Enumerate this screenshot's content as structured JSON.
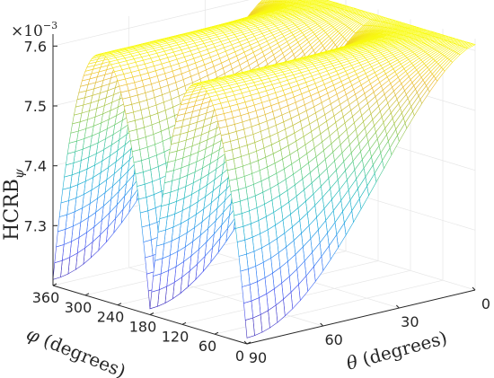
{
  "chart_data": {
    "type": "surface",
    "title": "",
    "zlabel_main": "HCRB",
    "zlabel_sub": "ψ",
    "multiplier_base": "×10",
    "multiplier_exp": "−3",
    "xlabel_var": "θ",
    "xlabel_unit": "(degrees)",
    "ylabel_var": "φ",
    "ylabel_unit": "(degrees)",
    "theta_ticks": [
      "0",
      "30",
      "60",
      "90"
    ],
    "theta_tick_values": [
      0,
      30,
      60,
      90
    ],
    "phi_ticks": [
      "0",
      "60",
      "120",
      "180",
      "240",
      "300",
      "360"
    ],
    "phi_tick_values": [
      0,
      60,
      120,
      180,
      240,
      300,
      360
    ],
    "z_ticks": [
      "7.3",
      "7.4",
      "7.5",
      "7.6"
    ],
    "z_tick_values": [
      7.3,
      7.4,
      7.5,
      7.6
    ],
    "theta_range": [
      0,
      90
    ],
    "phi_range": [
      0,
      360
    ],
    "z_range": [
      7.2,
      7.62
    ],
    "z_min_value": 7.21,
    "z_max_value": 7.61,
    "phi_period_deg": 180,
    "colormap": "parula",
    "grid": true
  }
}
